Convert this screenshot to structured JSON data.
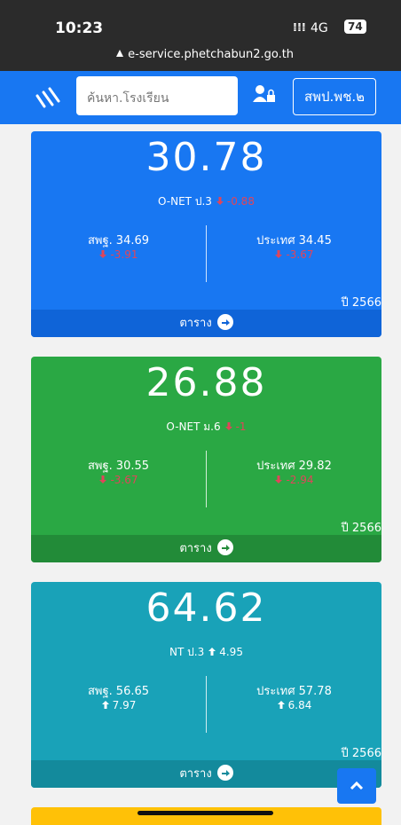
{
  "status_bar": {
    "time": "10:23",
    "network": "4G",
    "battery": 74
  },
  "address_bar": {
    "url": "e-service.phetchabun2.go.th"
  },
  "nav": {
    "search_placeholder": "ค้นหา.โรงเรียน",
    "area_button": "สพป.พช.๒"
  },
  "cards": [
    {
      "color": "#1877f2",
      "footer_color": "#0f64d8",
      "score": 30.78,
      "subject": "O-NET ป.3",
      "change": -0.88,
      "left_label": "สพฐ.",
      "left_score": 34.69,
      "left_change": -3.91,
      "right_label": "ประเทศ",
      "right_score": 34.45,
      "right_change": -3.67,
      "year": "ปี 2566",
      "footer": "ตาราง"
    },
    {
      "color": "#2aa844",
      "footer_color": "#228b38",
      "score": 26.88,
      "subject": "O-NET ม.6",
      "change": -1.0,
      "left_label": "สพฐ.",
      "left_score": 30.55,
      "left_change": -3.67,
      "right_label": "ประเทศ",
      "right_score": 29.82,
      "right_change": -2.94,
      "year": "ปี 2566",
      "footer": "ตาราง"
    },
    {
      "color": "#19a2b8",
      "footer_color": "#138a9c",
      "score": 64.62,
      "subject": "NT ป.3",
      "change": 4.95,
      "left_label": "สพฐ.",
      "left_score": 56.65,
      "left_change": 7.97,
      "right_label": "ประเทศ",
      "right_score": 57.78,
      "right_change": 6.84,
      "year": "ปี 2566",
      "footer": "ตาราง"
    }
  ]
}
